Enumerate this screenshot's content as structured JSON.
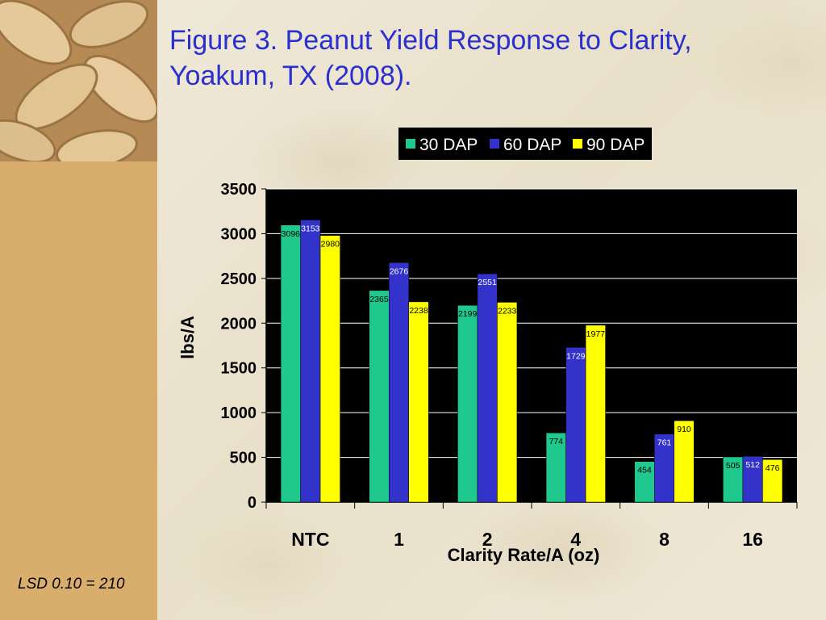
{
  "slide": {
    "title_line1": "Figure 3.  Peanut Yield Response to Clarity,",
    "title_line2": "Yoakum, TX (2008).",
    "footnote": "LSD 0.10 = 210"
  },
  "chart_data": {
    "type": "bar",
    "title": "",
    "xlabel": "Clarity Rate/A (oz)",
    "ylabel": "lbs/A",
    "ylim": [
      0,
      3500
    ],
    "yticks": [
      0,
      500,
      1000,
      1500,
      2000,
      2500,
      3000,
      3500
    ],
    "categories": [
      "NTC",
      "1",
      "2",
      "4",
      "8",
      "16"
    ],
    "series": [
      {
        "name": "30 DAP",
        "color": "#1fc88c",
        "values": [
          3096,
          2365,
          2199,
          774,
          454,
          505
        ]
      },
      {
        "name": "60 DAP",
        "color": "#3333cc",
        "values": [
          3153,
          2676,
          2551,
          1729,
          761,
          512
        ]
      },
      {
        "name": "90 DAP",
        "color": "#ffff00",
        "values": [
          2980,
          2238,
          2233,
          1977,
          910,
          476
        ]
      }
    ],
    "legend_position": "top",
    "grid": true,
    "plot_background": "#000000",
    "data_labels": true
  }
}
